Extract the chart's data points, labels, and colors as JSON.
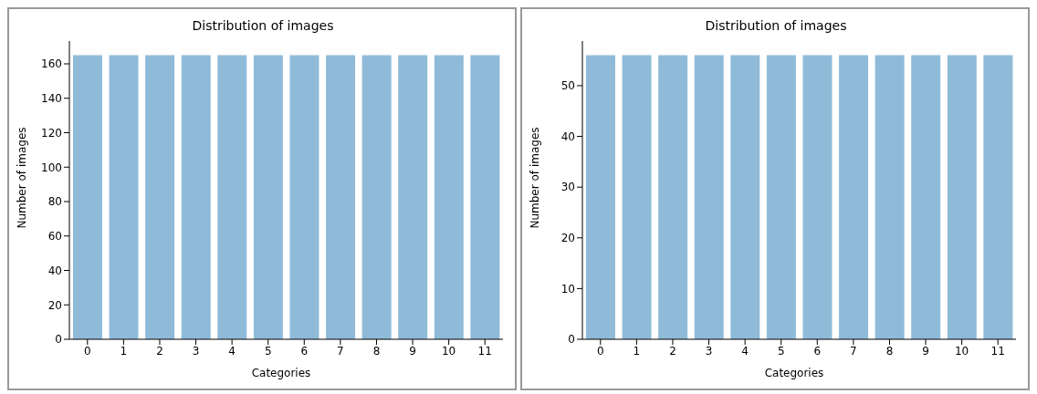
{
  "chart_data": [
    {
      "type": "bar",
      "title": "Distribution of images",
      "xlabel": "Categories",
      "ylabel": "Number of images",
      "categories": [
        "0",
        "1",
        "2",
        "3",
        "4",
        "5",
        "6",
        "7",
        "8",
        "9",
        "10",
        "11"
      ],
      "values": [
        165,
        165,
        165,
        165,
        165,
        165,
        165,
        165,
        165,
        165,
        165,
        165
      ],
      "color": "#8fbbd9",
      "ylim": [
        0,
        173.25
      ],
      "yticks": [
        0,
        20,
        40,
        60,
        80,
        100,
        120,
        140,
        160
      ],
      "grid": false,
      "legend": false
    },
    {
      "type": "bar",
      "title": "Distribution of images",
      "xlabel": "Categories",
      "ylabel": "Number of images",
      "categories": [
        "0",
        "1",
        "2",
        "3",
        "4",
        "5",
        "6",
        "7",
        "8",
        "9",
        "10",
        "11"
      ],
      "values": [
        56,
        56,
        56,
        56,
        56,
        56,
        56,
        56,
        56,
        56,
        56,
        56
      ],
      "color": "#8fbbd9",
      "ylim": [
        0,
        58.8
      ],
      "yticks": [
        0,
        10,
        20,
        30,
        40,
        50
      ],
      "grid": false,
      "legend": false
    }
  ]
}
